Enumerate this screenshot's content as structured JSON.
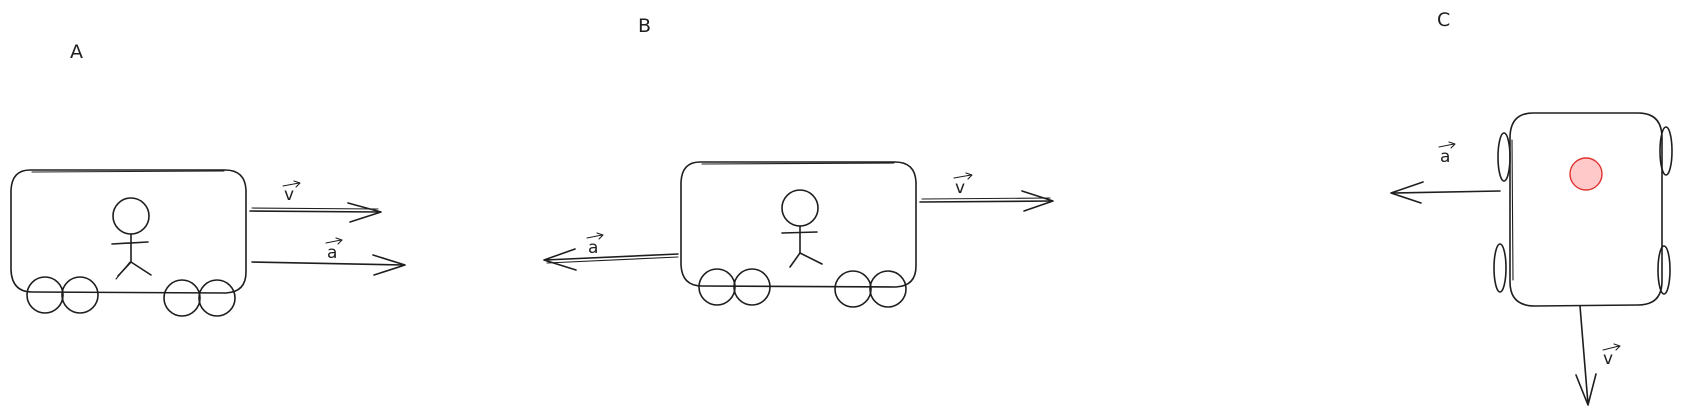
{
  "panels": [
    {
      "label": "A",
      "vectors": [
        "v",
        "a"
      ]
    },
    {
      "label": "B",
      "vectors": [
        "v",
        "a"
      ]
    },
    {
      "label": "C",
      "vectors": [
        "a",
        "v"
      ]
    }
  ],
  "colors": {
    "ink": "#1e1e1e",
    "dot_fill": "#ffc9c9",
    "dot_stroke": "#e03131"
  }
}
